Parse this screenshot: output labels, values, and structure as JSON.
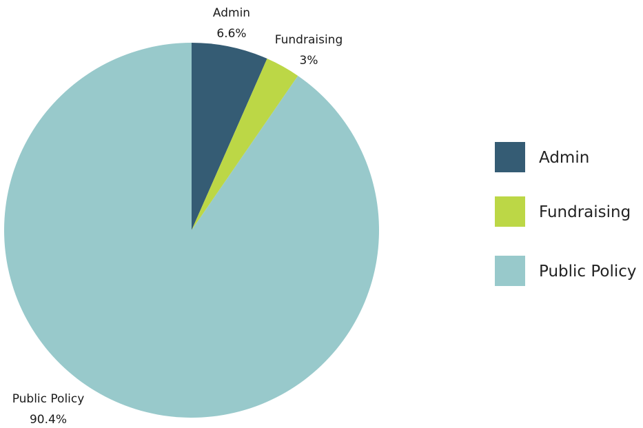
{
  "chart_data": {
    "type": "pie",
    "slices": [
      {
        "label": "Admin",
        "value": 6.6,
        "value_label": "6.6%",
        "color": "#355c74"
      },
      {
        "label": "Fundraising",
        "value": 3,
        "value_label": "3%",
        "color": "#bcd746"
      },
      {
        "label": "Public Policy",
        "value": 90.4,
        "value_label": "90.4%",
        "color": "#98c9cb"
      }
    ],
    "start_angle": "12 o'clock",
    "direction": "clockwise",
    "legend": {
      "position": "right",
      "entries": [
        "Admin",
        "Fundraising",
        "Public Policy"
      ]
    }
  }
}
